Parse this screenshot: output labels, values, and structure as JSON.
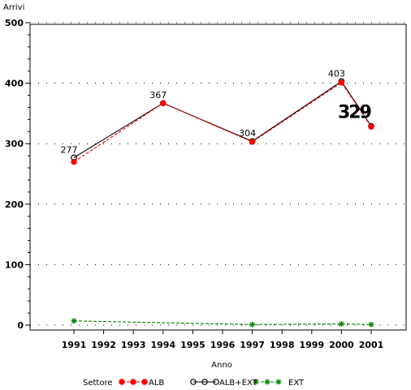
{
  "chart_data": {
    "type": "line",
    "xlabel": "Anno",
    "ylabel": "Arrivi",
    "ylim": [
      0,
      500
    ],
    "yticks": [
      0,
      100,
      200,
      300,
      400,
      500
    ],
    "x_categories": [
      "1991",
      "1992",
      "1993",
      "1994",
      "1995",
      "1996",
      "1997",
      "1998",
      "1999",
      "2000",
      "2001"
    ],
    "grid": true,
    "legend_title": "Settore",
    "legend_position": "bottom",
    "series": [
      {
        "name": "ALB",
        "color": "#ff0000",
        "marker": "filled-circle",
        "line_style": "dashed",
        "points": [
          {
            "x": "1991",
            "y": 270
          },
          {
            "x": "1994",
            "y": 367
          },
          {
            "x": "1997",
            "y": 303
          },
          {
            "x": "2000",
            "y": 401
          },
          {
            "x": "2001",
            "y": 328
          }
        ]
      },
      {
        "name": "ALB+EXT",
        "color": "#000000",
        "marker": "open-circle",
        "line_style": "solid",
        "points": [
          {
            "x": "1991",
            "y": 277
          },
          {
            "x": "1994",
            "y": 367
          },
          {
            "x": "1997",
            "y": 304
          },
          {
            "x": "2000",
            "y": 403
          },
          {
            "x": "2001",
            "y": 329
          }
        ]
      },
      {
        "name": "EXT",
        "color": "#008000",
        "marker": "star",
        "line_style": "dashed",
        "points": [
          {
            "x": "1991",
            "y": 7
          },
          {
            "x": "1997",
            "y": 1
          },
          {
            "x": "2000",
            "y": 2
          },
          {
            "x": "2001",
            "y": 1
          }
        ]
      }
    ],
    "annotations": [
      {
        "text": "277",
        "x": "1991",
        "y": 277,
        "emphasis": false
      },
      {
        "text": "367",
        "x": "1994",
        "y": 367,
        "emphasis": false
      },
      {
        "text": "304",
        "x": "1997",
        "y": 304,
        "emphasis": false
      },
      {
        "text": "403",
        "x": "2000",
        "y": 403,
        "emphasis": false
      },
      {
        "text": "329",
        "x": "2001",
        "y": 329,
        "emphasis": true
      }
    ]
  }
}
